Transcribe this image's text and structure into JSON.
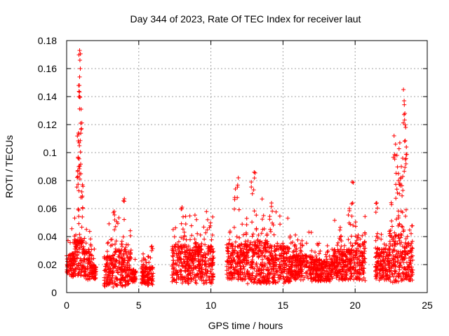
{
  "chart_data": {
    "type": "scatter",
    "title": "Day 344 of 2023, Rate Of TEC Index for receiver laut",
    "xlabel": "GPS time / hours",
    "ylabel": "ROTI / TECUs",
    "xlim": [
      0,
      25
    ],
    "ylim": [
      0,
      0.18
    ],
    "x_ticks": [
      "0",
      "5",
      "10",
      "15",
      "20",
      "25"
    ],
    "y_ticks": [
      "0",
      "0.02",
      "0.04",
      "0.06",
      "0.08",
      "0.1",
      "0.12",
      "0.14",
      "0.16",
      "0.18"
    ],
    "grid": true,
    "marker": "+",
    "color": "#ff0000",
    "series": [
      {
        "name": "ROTI",
        "segments": [
          {
            "x": [
              0.0,
              0.5
            ],
            "base": 0.02,
            "spread": 0.02
          },
          {
            "x": [
              0.5,
              1.2
            ],
            "base": 0.025,
            "spread": 0.03
          },
          {
            "x": [
              1.2,
              1.75
            ],
            "base": 0.02,
            "spread": 0.025
          },
          {
            "x": [
              1.75,
              2.05
            ],
            "base": 0.015,
            "spread": 0.012
          },
          {
            "x": [
              2.6,
              3.3
            ],
            "base": 0.015,
            "spread": 0.025
          },
          {
            "x": [
              3.3,
              4.5
            ],
            "base": 0.018,
            "spread": 0.03
          },
          {
            "x": [
              4.5,
              4.8
            ],
            "base": 0.012,
            "spread": 0.01
          },
          {
            "x": [
              5.2,
              6.0
            ],
            "base": 0.012,
            "spread": 0.015
          },
          {
            "x": [
              7.3,
              8.5
            ],
            "base": 0.02,
            "spread": 0.03
          },
          {
            "x": [
              8.5,
              10.2
            ],
            "base": 0.02,
            "spread": 0.03
          },
          {
            "x": [
              11.1,
              12.5
            ],
            "base": 0.022,
            "spread": 0.03
          },
          {
            "x": [
              12.5,
              14.0
            ],
            "base": 0.022,
            "spread": 0.035
          },
          {
            "x": [
              14.0,
              15.5
            ],
            "base": 0.02,
            "spread": 0.03
          },
          {
            "x": [
              15.5,
              17.0
            ],
            "base": 0.018,
            "spread": 0.02
          },
          {
            "x": [
              17.0,
              18.5
            ],
            "base": 0.016,
            "spread": 0.018
          },
          {
            "x": [
              18.5,
              20.0
            ],
            "base": 0.02,
            "spread": 0.025
          },
          {
            "x": [
              20.0,
              20.7
            ],
            "base": 0.022,
            "spread": 0.03
          },
          {
            "x": [
              21.4,
              22.4
            ],
            "base": 0.02,
            "spread": 0.025
          },
          {
            "x": [
              22.4,
              23.3
            ],
            "base": 0.025,
            "spread": 0.04
          },
          {
            "x": [
              23.3,
              24.0
            ],
            "base": 0.022,
            "spread": 0.03
          }
        ],
        "peaks": [
          {
            "x": 0.9,
            "y": 0.173
          },
          {
            "x": 0.92,
            "y": 0.166
          },
          {
            "x": 0.95,
            "y": 0.16
          },
          {
            "x": 0.88,
            "y": 0.148
          },
          {
            "x": 0.85,
            "y": 0.14
          },
          {
            "x": 1.0,
            "y": 0.131
          },
          {
            "x": 0.97,
            "y": 0.121
          },
          {
            "x": 0.82,
            "y": 0.114
          },
          {
            "x": 0.86,
            "y": 0.107
          },
          {
            "x": 0.8,
            "y": 0.096
          },
          {
            "x": 0.84,
            "y": 0.09
          },
          {
            "x": 0.78,
            "y": 0.083
          },
          {
            "x": 1.1,
            "y": 0.077
          },
          {
            "x": 1.05,
            "y": 0.072
          },
          {
            "x": 3.3,
            "y": 0.058
          },
          {
            "x": 4.0,
            "y": 0.067
          },
          {
            "x": 5.9,
            "y": 0.03
          },
          {
            "x": 8.0,
            "y": 0.061
          },
          {
            "x": 11.7,
            "y": 0.074
          },
          {
            "x": 11.9,
            "y": 0.082
          },
          {
            "x": 12.8,
            "y": 0.079
          },
          {
            "x": 13.0,
            "y": 0.086
          },
          {
            "x": 14.2,
            "y": 0.064
          },
          {
            "x": 19.8,
            "y": 0.079
          },
          {
            "x": 19.6,
            "y": 0.06
          },
          {
            "x": 22.7,
            "y": 0.112
          },
          {
            "x": 22.8,
            "y": 0.106
          },
          {
            "x": 22.9,
            "y": 0.098
          },
          {
            "x": 23.1,
            "y": 0.107
          },
          {
            "x": 23.2,
            "y": 0.09
          },
          {
            "x": 23.35,
            "y": 0.145
          },
          {
            "x": 23.4,
            "y": 0.137
          },
          {
            "x": 23.45,
            "y": 0.128
          },
          {
            "x": 23.5,
            "y": 0.118
          },
          {
            "x": 23.55,
            "y": 0.104
          },
          {
            "x": 23.3,
            "y": 0.096
          },
          {
            "x": 23.0,
            "y": 0.085
          },
          {
            "x": 21.5,
            "y": 0.064
          }
        ]
      }
    ]
  }
}
